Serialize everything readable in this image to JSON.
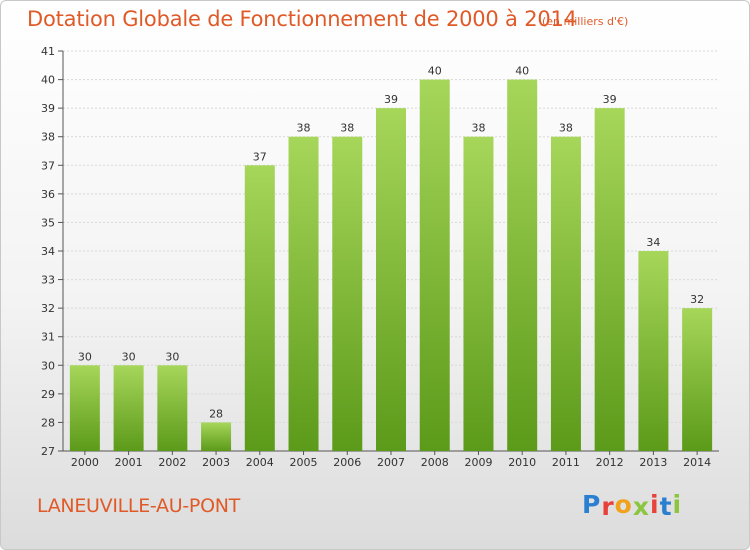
{
  "header": {
    "title": "Dotation Globale de Fonctionnement de 2000 à 2014",
    "unit": "(en milliers d'€)"
  },
  "footer": {
    "commune": "LANEUVILLE-AU-PONT",
    "logo_letters": [
      "P",
      "r",
      "o",
      "x",
      "i",
      "t",
      "i"
    ],
    "logo_colors": [
      "#2b7fd0",
      "#e8413a",
      "#f0a21c",
      "#8cc63e",
      "#e8413a",
      "#2b7fd0",
      "#8cc63e"
    ]
  },
  "colors": {
    "bar_light": "#a6d65a",
    "bar_dark": "#5c9a1a",
    "title": "#e05a28",
    "grid": "#d8d8d8",
    "axis": "#555555"
  },
  "chart_data": {
    "type": "bar",
    "title": "Dotation Globale de Fonctionnement de 2000 à 2014",
    "subtitle": "(en milliers d'€)",
    "categories": [
      "2000",
      "2001",
      "2002",
      "2003",
      "2004",
      "2005",
      "2006",
      "2007",
      "2008",
      "2009",
      "2010",
      "2011",
      "2012",
      "2013",
      "2014"
    ],
    "values": [
      30,
      30,
      30,
      28,
      37,
      38,
      38,
      39,
      40,
      38,
      40,
      38,
      39,
      34,
      32
    ],
    "ylim": [
      27,
      41
    ],
    "yticks": [
      27,
      28,
      29,
      30,
      31,
      32,
      33,
      34,
      35,
      36,
      37,
      38,
      39,
      40,
      41
    ],
    "grid": true,
    "data_labels": true
  }
}
